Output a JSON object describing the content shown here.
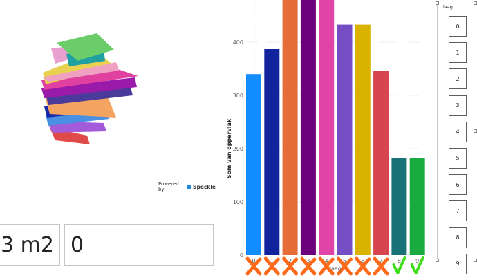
{
  "viewer": {
    "powered_by": "Powered by",
    "brand": "Speckle"
  },
  "cards": {
    "area_value": "3 m2",
    "layer_value": "0"
  },
  "slicer": {
    "title": "laag",
    "items": [
      "0",
      "1",
      "2",
      "3",
      "4",
      "5",
      "6",
      "7",
      "8",
      "9"
    ]
  },
  "chart_data": {
    "type": "bar",
    "title": "",
    "xlabel": "laag",
    "ylabel": "Som van oppervlak",
    "categories": [
      "0",
      "1",
      "2",
      "3",
      "4",
      "5",
      "6",
      "7",
      "8",
      "9"
    ],
    "values": [
      340,
      387,
      480,
      480,
      480,
      433,
      433,
      346,
      183,
      183
    ],
    "colors": [
      "#118DFF",
      "#12239E",
      "#E66C37",
      "#6B007B",
      "#E044A7",
      "#744EC2",
      "#D9B300",
      "#D64550",
      "#197278",
      "#1AAB40"
    ],
    "ylim": [
      0,
      480
    ],
    "yticks": [
      0,
      100,
      200,
      300,
      400
    ],
    "marks": [
      "cross",
      "cross",
      "cross",
      "cross",
      "cross",
      "cross",
      "cross",
      "cross",
      "check",
      "check"
    ],
    "mark_colors": {
      "cross": "#FF6A1A",
      "check": "#3FDC1A"
    }
  }
}
